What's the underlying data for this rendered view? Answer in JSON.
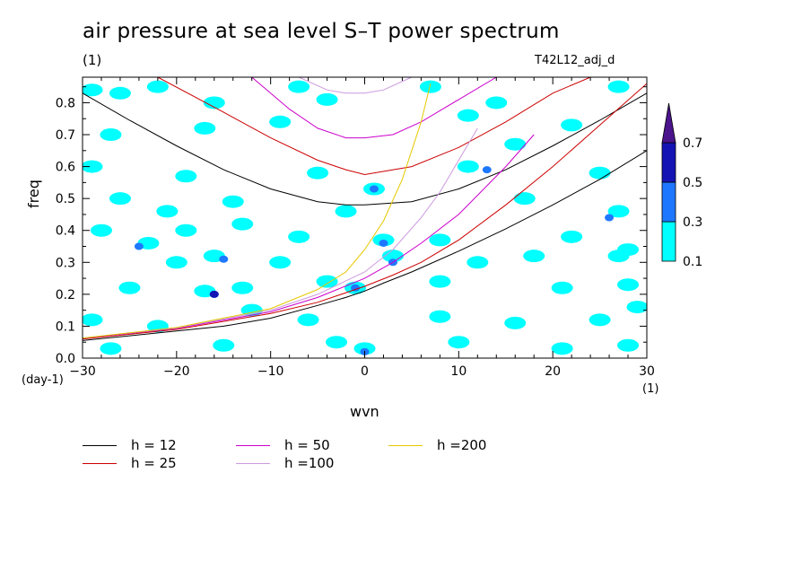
{
  "title": "air pressure at sea level S–T power spectrum",
  "units": "(1)",
  "run_id": "T42L12_adj_d",
  "colors": {
    "cyan": "#00ffff",
    "blue": "#1e78ff",
    "navy": "#1414b4",
    "purple": "#4b148c"
  },
  "chart_data": {
    "type": "heatmap",
    "xlabel": "wvn",
    "ylabel": "freq",
    "x_unit": "(1)",
    "y_unit": "(day-1)",
    "xlim": [
      -30,
      30
    ],
    "ylim": [
      0.0,
      0.88
    ],
    "x_ticks": [
      -30,
      -20,
      -10,
      0,
      10,
      20,
      30
    ],
    "y_ticks": [
      0.0,
      0.1,
      0.2,
      0.3,
      0.4,
      0.5,
      0.6,
      0.7,
      0.8
    ],
    "colorbar": {
      "levels": [
        0.1,
        0.3,
        0.5,
        0.7
      ],
      "colors": [
        "#00ffff",
        "#1e78ff",
        "#1414b4",
        "#4b148c"
      ],
      "extend": "max"
    },
    "blobs": [
      {
        "x": -29,
        "y": 0.84,
        "v": 0.15
      },
      {
        "x": -26,
        "y": 0.83,
        "v": 0.15
      },
      {
        "x": -22,
        "y": 0.85,
        "v": 0.15
      },
      {
        "x": -16,
        "y": 0.8,
        "v": 0.15
      },
      {
        "x": -7,
        "y": 0.85,
        "v": 0.15
      },
      {
        "x": -4,
        "y": 0.81,
        "v": 0.15
      },
      {
        "x": 7,
        "y": 0.85,
        "v": 0.15
      },
      {
        "x": 14,
        "y": 0.8,
        "v": 0.15
      },
      {
        "x": 27,
        "y": 0.85,
        "v": 0.15
      },
      {
        "x": -27,
        "y": 0.7,
        "v": 0.15
      },
      {
        "x": -17,
        "y": 0.72,
        "v": 0.15
      },
      {
        "x": -9,
        "y": 0.74,
        "v": 0.15
      },
      {
        "x": 11,
        "y": 0.76,
        "v": 0.15
      },
      {
        "x": 22,
        "y": 0.73,
        "v": 0.15
      },
      {
        "x": 16,
        "y": 0.67,
        "v": 0.15
      },
      {
        "x": -29,
        "y": 0.6,
        "v": 0.15
      },
      {
        "x": -19,
        "y": 0.57,
        "v": 0.15
      },
      {
        "x": -5,
        "y": 0.58,
        "v": 0.15
      },
      {
        "x": 25,
        "y": 0.58,
        "v": 0.15
      },
      {
        "x": 11,
        "y": 0.6,
        "v": 0.15
      },
      {
        "x": 13,
        "y": 0.59,
        "v": 0.35
      },
      {
        "x": -26,
        "y": 0.5,
        "v": 0.15
      },
      {
        "x": -21,
        "y": 0.46,
        "v": 0.15
      },
      {
        "x": -14,
        "y": 0.49,
        "v": 0.15
      },
      {
        "x": -2,
        "y": 0.46,
        "v": 0.15
      },
      {
        "x": 1,
        "y": 0.53,
        "v": 0.15
      },
      {
        "x": 1,
        "y": 0.53,
        "v": 0.35
      },
      {
        "x": 17,
        "y": 0.5,
        "v": 0.15
      },
      {
        "x": 27,
        "y": 0.46,
        "v": 0.15
      },
      {
        "x": 26,
        "y": 0.44,
        "v": 0.35
      },
      {
        "x": -28,
        "y": 0.4,
        "v": 0.15
      },
      {
        "x": -19,
        "y": 0.4,
        "v": 0.15
      },
      {
        "x": -23,
        "y": 0.36,
        "v": 0.15
      },
      {
        "x": -24,
        "y": 0.35,
        "v": 0.35
      },
      {
        "x": -13,
        "y": 0.42,
        "v": 0.15
      },
      {
        "x": -7,
        "y": 0.38,
        "v": 0.15
      },
      {
        "x": 2,
        "y": 0.37,
        "v": 0.15
      },
      {
        "x": 2,
        "y": 0.36,
        "v": 0.35
      },
      {
        "x": 8,
        "y": 0.37,
        "v": 0.15
      },
      {
        "x": 22,
        "y": 0.38,
        "v": 0.15
      },
      {
        "x": 28,
        "y": 0.34,
        "v": 0.15
      },
      {
        "x": -16,
        "y": 0.32,
        "v": 0.15
      },
      {
        "x": -15,
        "y": 0.31,
        "v": 0.35
      },
      {
        "x": -20,
        "y": 0.3,
        "v": 0.15
      },
      {
        "x": -9,
        "y": 0.3,
        "v": 0.15
      },
      {
        "x": 3,
        "y": 0.32,
        "v": 0.15
      },
      {
        "x": 3,
        "y": 0.3,
        "v": 0.35
      },
      {
        "x": 12,
        "y": 0.3,
        "v": 0.15
      },
      {
        "x": 18,
        "y": 0.32,
        "v": 0.15
      },
      {
        "x": 27,
        "y": 0.32,
        "v": 0.15
      },
      {
        "x": -17,
        "y": 0.21,
        "v": 0.15
      },
      {
        "x": -16,
        "y": 0.2,
        "v": 0.35
      },
      {
        "x": -16,
        "y": 0.2,
        "v": 0.55
      },
      {
        "x": -13,
        "y": 0.22,
        "v": 0.15
      },
      {
        "x": -25,
        "y": 0.22,
        "v": 0.15
      },
      {
        "x": -4,
        "y": 0.24,
        "v": 0.15
      },
      {
        "x": -1,
        "y": 0.22,
        "v": 0.15
      },
      {
        "x": -1,
        "y": 0.22,
        "v": 0.35
      },
      {
        "x": 8,
        "y": 0.24,
        "v": 0.15
      },
      {
        "x": 21,
        "y": 0.22,
        "v": 0.15
      },
      {
        "x": 28,
        "y": 0.23,
        "v": 0.15
      },
      {
        "x": -29,
        "y": 0.12,
        "v": 0.15
      },
      {
        "x": -22,
        "y": 0.1,
        "v": 0.15
      },
      {
        "x": -12,
        "y": 0.15,
        "v": 0.15
      },
      {
        "x": -6,
        "y": 0.12,
        "v": 0.15
      },
      {
        "x": 8,
        "y": 0.13,
        "v": 0.15
      },
      {
        "x": 16,
        "y": 0.11,
        "v": 0.15
      },
      {
        "x": 25,
        "y": 0.12,
        "v": 0.15
      },
      {
        "x": 29,
        "y": 0.16,
        "v": 0.15
      },
      {
        "x": -27,
        "y": 0.03,
        "v": 0.15
      },
      {
        "x": -15,
        "y": 0.04,
        "v": 0.15
      },
      {
        "x": -3,
        "y": 0.05,
        "v": 0.15
      },
      {
        "x": 0,
        "y": 0.03,
        "v": 0.15
      },
      {
        "x": 0,
        "y": 0.02,
        "v": 0.35
      },
      {
        "x": 10,
        "y": 0.05,
        "v": 0.15
      },
      {
        "x": 21,
        "y": 0.03,
        "v": 0.15
      },
      {
        "x": 28,
        "y": 0.04,
        "v": 0.15
      }
    ],
    "series": [
      {
        "name": "h = 12",
        "color": "#000000",
        "branch": "rossby_gravity_and_kelvin",
        "segments": [
          {
            "x": [
              -30,
              -25,
              -20,
              -15,
              -10,
              -5,
              -2,
              0,
              2,
              5,
              10,
              15,
              20,
              25,
              30
            ],
            "y": [
              0.055,
              0.07,
              0.085,
              0.1,
              0.125,
              0.165,
              0.19,
              0.21,
              0.235,
              0.27,
              0.335,
              0.405,
              0.48,
              0.56,
              0.65
            ]
          },
          {
            "x": [
              -30,
              -25,
              -20,
              -15,
              -10,
              -5,
              -2,
              0,
              5,
              10,
              15,
              20,
              25,
              30
            ],
            "y": [
              0.83,
              0.745,
              0.665,
              0.59,
              0.53,
              0.49,
              0.48,
              0.48,
              0.49,
              0.53,
              0.59,
              0.665,
              0.745,
              0.83
            ]
          }
        ]
      },
      {
        "name": "h = 25",
        "color": "#cc0000",
        "branch": "kelvin_and_gravity",
        "segments": [
          {
            "x": [
              -30,
              -20,
              -10,
              -5,
              0,
              3,
              6,
              10,
              15,
              20,
              25,
              30
            ],
            "y": [
              0.06,
              0.09,
              0.14,
              0.175,
              0.225,
              0.26,
              0.3,
              0.37,
              0.48,
              0.6,
              0.73,
              0.86
            ]
          },
          {
            "x": [
              -22,
              -15,
              -10,
              -5,
              -2,
              0,
              5,
              10,
              15,
              20,
              24
            ],
            "y": [
              0.88,
              0.77,
              0.69,
              0.62,
              0.59,
              0.575,
              0.6,
              0.66,
              0.74,
              0.83,
              0.88
            ]
          }
        ]
      },
      {
        "name": "h = 50",
        "color": "#cc00cc",
        "branch": "kelvin_and_gravity",
        "segments": [
          {
            "x": [
              -30,
              -20,
              -10,
              -5,
              0,
              3,
              6,
              10,
              15,
              18
            ],
            "y": [
              0.062,
              0.093,
              0.145,
              0.19,
              0.25,
              0.3,
              0.36,
              0.45,
              0.6,
              0.7
            ]
          },
          {
            "x": [
              -12,
              -8,
              -5,
              -2,
              0,
              3,
              6,
              10,
              14
            ],
            "y": [
              0.88,
              0.78,
              0.72,
              0.69,
              0.69,
              0.7,
              0.74,
              0.81,
              0.88
            ]
          }
        ]
      },
      {
        "name": "h =100",
        "color": "#cc99dd",
        "branch": "kelvin_and_gravity",
        "segments": [
          {
            "x": [
              -30,
              -20,
              -10,
              -5,
              0,
              3,
              6,
              8,
              10,
              12
            ],
            "y": [
              0.063,
              0.095,
              0.15,
              0.2,
              0.27,
              0.34,
              0.44,
              0.52,
              0.62,
              0.72
            ]
          },
          {
            "x": [
              -7,
              -4,
              -2,
              0,
              2,
              5
            ],
            "y": [
              0.88,
              0.84,
              0.83,
              0.83,
              0.84,
              0.88
            ]
          }
        ]
      },
      {
        "name": "h =200",
        "color": "#e6c800",
        "branch": "kelvin",
        "segments": [
          {
            "x": [
              -30,
              -20,
              -10,
              -5,
              -2,
              0,
              2,
              4,
              6,
              7
            ],
            "y": [
              0.063,
              0.096,
              0.155,
              0.215,
              0.27,
              0.34,
              0.43,
              0.56,
              0.74,
              0.86
            ]
          }
        ]
      }
    ]
  },
  "legend": [
    {
      "label": "h = 12",
      "color": "#000000"
    },
    {
      "label": "h = 25",
      "color": "#cc0000"
    },
    {
      "label": "h = 50",
      "color": "#cc00cc"
    },
    {
      "label": "h =100",
      "color": "#cc99dd"
    },
    {
      "label": "h =200",
      "color": "#e6c800"
    }
  ]
}
